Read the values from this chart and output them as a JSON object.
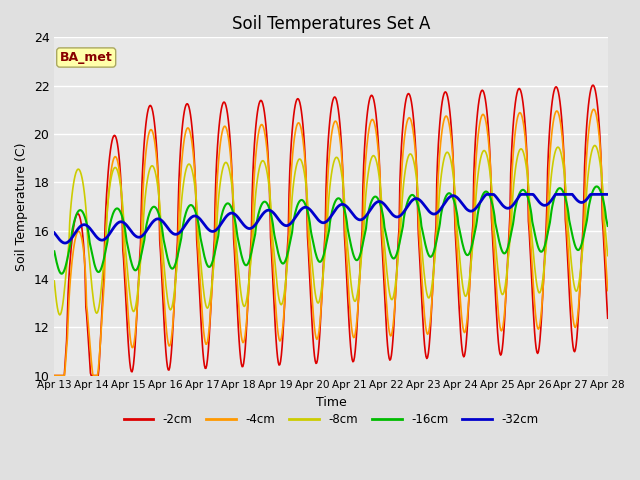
{
  "title": "Soil Temperatures Set A",
  "xlabel": "Time",
  "ylabel": "Soil Temperature (C)",
  "ylim": [
    10,
    24
  ],
  "yticks": [
    10,
    12,
    14,
    16,
    18,
    20,
    22,
    24
  ],
  "xtick_labels": [
    "Apr 13",
    "Apr 14",
    "Apr 15",
    "Apr 16",
    "Apr 17",
    "Apr 18",
    "Apr 19",
    "Apr 20",
    "Apr 21",
    "Apr 22",
    "Apr 23",
    "Apr 24",
    "Apr 25",
    "Apr 26",
    "Apr 27",
    "Apr 28"
  ],
  "series_colors": [
    "#dd0000",
    "#ff9900",
    "#cccc00",
    "#00bb00",
    "#0000cc"
  ],
  "series_labels": [
    "-2cm",
    "-4cm",
    "-8cm",
    "-16cm",
    "-32cm"
  ],
  "series_linewidths": [
    1.2,
    1.2,
    1.2,
    1.5,
    2.0
  ],
  "bg_color": "#e0e0e0",
  "plot_bg_color": "#e8e8e8",
  "annotation_text": "BA_met",
  "annotation_bg": "#ffffaa",
  "annotation_fg": "#880000",
  "grid_color": "#ffffff",
  "title_fontsize": 12
}
